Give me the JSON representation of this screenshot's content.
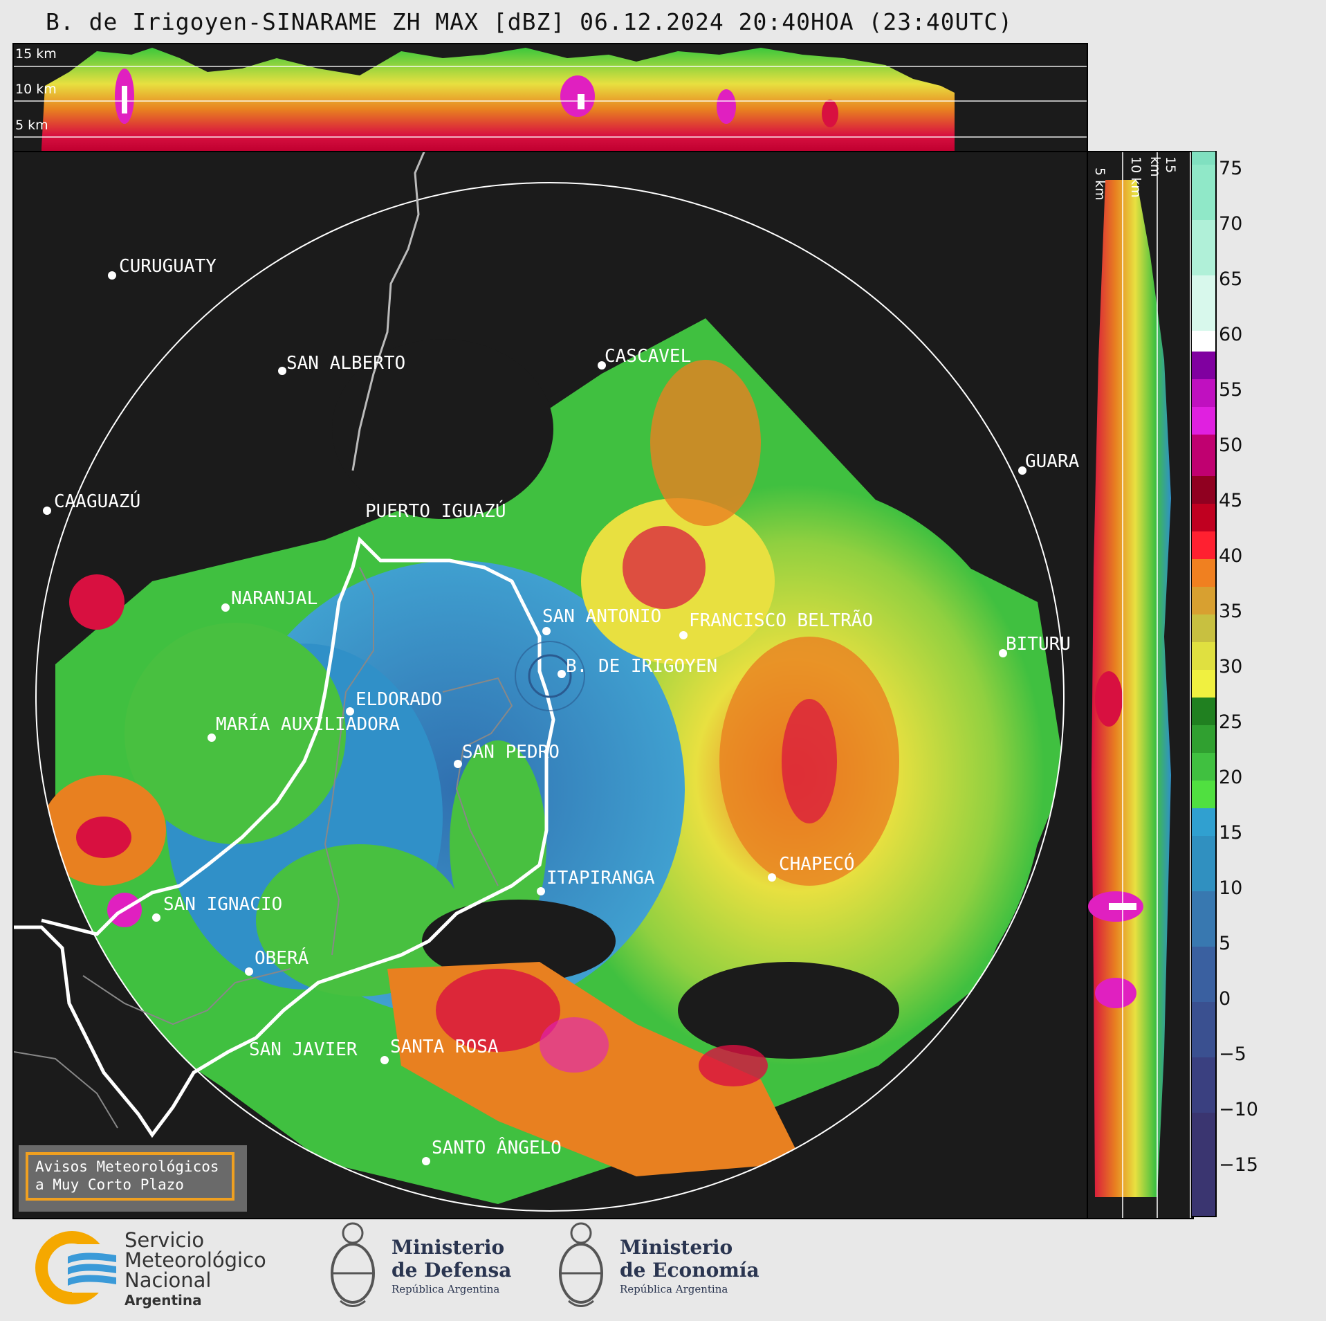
{
  "title": "B. de Irigoyen-SINARAME ZH MAX [dBZ] 06.12.2024 20:40HOA (23:40UTC)",
  "top_panel": {
    "km_labels": [
      "15 km",
      "10 km",
      "5 km"
    ]
  },
  "side_panel": {
    "km_labels": [
      "5 km",
      "10 km",
      "15 km"
    ]
  },
  "colorbar": {
    "unit": "dBZ",
    "ticks": [
      "75",
      "70",
      "65",
      "60",
      "55",
      "50",
      "45",
      "40",
      "35",
      "30",
      "25",
      "20",
      "15",
      "10",
      "5",
      "0",
      "−5",
      "−10",
      "−15"
    ],
    "range": [
      -20,
      77
    ]
  },
  "cities": [
    {
      "name": "CURUGUATY"
    },
    {
      "name": "SAN ALBERTO"
    },
    {
      "name": "CASCAVEL"
    },
    {
      "name": "CAAGUAZÚ"
    },
    {
      "name": "GUARA"
    },
    {
      "name": "PUERTO IGUAZÚ"
    },
    {
      "name": "NARANJAL"
    },
    {
      "name": "SAN ANTONIO"
    },
    {
      "name": "FRANCISCO BELTRÃO"
    },
    {
      "name": "BITURU"
    },
    {
      "name": "B. DE IRIGOYEN"
    },
    {
      "name": "ELDORADO"
    },
    {
      "name": "MARÍA AUXILIADORA"
    },
    {
      "name": "SAN PEDRO"
    },
    {
      "name": "CHAPECÓ"
    },
    {
      "name": "ITAPIRANGA"
    },
    {
      "name": "SAN IGNACIO"
    },
    {
      "name": "OBERÁ"
    },
    {
      "name": "SAN JAVIER"
    },
    {
      "name": "SANTA ROSA"
    },
    {
      "name": "SANTO ÂNGELO"
    }
  ],
  "warning_box": {
    "line1": "Avisos Meteorológicos",
    "line2": "a Muy Corto Plazo"
  },
  "logos": {
    "smn": {
      "line1": "Servicio",
      "line2": "Meteorológico",
      "line3": "Nacional",
      "line4": "Argentina"
    },
    "defensa": {
      "line1": "Ministerio",
      "line2": "de Defensa",
      "line3": "República Argentina"
    },
    "economia": {
      "line1": "Ministerio",
      "line2": "de Economía",
      "line3": "República Argentina"
    }
  },
  "colors": {
    "background": "#1b1b1b",
    "page": "#e8e8e8",
    "warning_border": "#f0a020"
  }
}
